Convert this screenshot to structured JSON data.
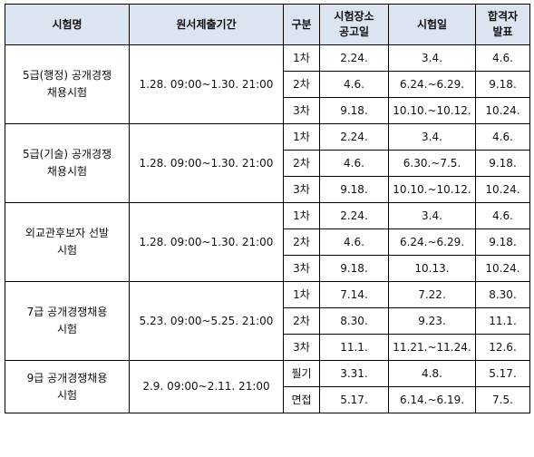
{
  "headers": {
    "exam_name": "시험명",
    "application_period": "원서제출기간",
    "category": "구분",
    "venue_notice_l1": "시험장소",
    "venue_notice_l2": "공고일",
    "exam_date": "시험일",
    "result_l1": "합격자",
    "result_l2": "발표"
  },
  "exams": [
    {
      "name_l1": "5급(행정) 공개경쟁",
      "name_l2": "채용시험",
      "period": "1.28. 09:00~1.30. 21:00",
      "stages": [
        {
          "stage": "1차",
          "venue_notice": "2.24.",
          "exam_date": "3.4.",
          "result": "4.6."
        },
        {
          "stage": "2차",
          "venue_notice": "4.6.",
          "exam_date": "6.24.~6.29.",
          "result": "9.18."
        },
        {
          "stage": "3차",
          "venue_notice": "9.18.",
          "exam_date": "10.10.~10.12.",
          "result": "10.24."
        }
      ]
    },
    {
      "name_l1": "5급(기술) 공개경쟁",
      "name_l2": "채용시험",
      "period": "1.28. 09:00~1.30. 21:00",
      "stages": [
        {
          "stage": "1차",
          "venue_notice": "2.24.",
          "exam_date": "3.4.",
          "result": "4.6."
        },
        {
          "stage": "2차",
          "venue_notice": "4.6.",
          "exam_date": "6.30.~7.5.",
          "result": "9.18."
        },
        {
          "stage": "3차",
          "venue_notice": "9.18.",
          "exam_date": "10.10.~10.12.",
          "result": "10.24."
        }
      ]
    },
    {
      "name_l1": "외교관후보자 선발",
      "name_l2": "시험",
      "period": "1.28. 09:00~1.30. 21:00",
      "stages": [
        {
          "stage": "1차",
          "venue_notice": "2.24.",
          "exam_date": "3.4.",
          "result": "4.6."
        },
        {
          "stage": "2차",
          "venue_notice": "4.6.",
          "exam_date": "6.24.~6.29.",
          "result": "9.18."
        },
        {
          "stage": "3차",
          "venue_notice": "9.18.",
          "exam_date": "10.13.",
          "result": "10.24."
        }
      ]
    },
    {
      "name_l1": "7급 공개경쟁채용",
      "name_l2": "시험",
      "period": "5.23. 09:00~5.25. 21:00",
      "stages": [
        {
          "stage": "1차",
          "venue_notice": "7.14.",
          "exam_date": "7.22.",
          "result": "8.30."
        },
        {
          "stage": "2차",
          "venue_notice": "8.30.",
          "exam_date": "9.23.",
          "result": "11.1."
        },
        {
          "stage": "3차",
          "venue_notice": "11.1.",
          "exam_date": "11.21.~11.24.",
          "result": "12.6."
        }
      ]
    },
    {
      "name_l1": "9급 공개경쟁채용",
      "name_l2": "시험",
      "period": "2.9. 09:00~2.11. 21:00",
      "stages": [
        {
          "stage": "필기",
          "venue_notice": "3.31.",
          "exam_date": "4.8.",
          "result": "5.17."
        },
        {
          "stage": "면접",
          "venue_notice": "5.17.",
          "exam_date": "6.14.~6.19.",
          "result": "7.5."
        }
      ]
    }
  ]
}
